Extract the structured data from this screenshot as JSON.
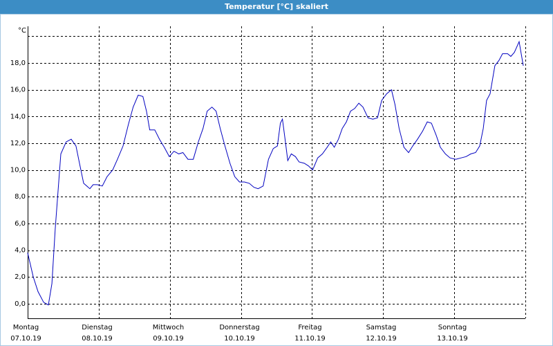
{
  "chart_data": {
    "type": "line",
    "title": "Temperatur [°C] skaliert",
    "unit_label": "°C",
    "xlim": [
      0,
      168
    ],
    "xticks": [
      0,
      24,
      48,
      72,
      96,
      120,
      144
    ],
    "xtick_days": [
      "Montag",
      "Dienstag",
      "Mittwoch",
      "Donnerstag",
      "Freitag",
      "Samstag",
      "Sonntag"
    ],
    "xtick_dates": [
      "07.10.19",
      "08.10.19",
      "09.10.19",
      "10.10.19",
      "11.10.19",
      "12.10.19",
      "13.10.19"
    ],
    "ylim": [
      -1.1,
      20.75
    ],
    "yticks": [
      {
        "value": 0,
        "label": "0,0"
      },
      {
        "value": 2,
        "label": "2,0"
      },
      {
        "value": 4,
        "label": "4,0"
      },
      {
        "value": 6,
        "label": "6,0"
      },
      {
        "value": 8,
        "label": "8,0"
      },
      {
        "value": 10,
        "label": "10,0"
      },
      {
        "value": 12,
        "label": "12,0"
      },
      {
        "value": 14,
        "label": "14,0"
      },
      {
        "value": 16,
        "label": "16,0"
      },
      {
        "value": 18,
        "label": "18,0"
      }
    ],
    "ygrid": [
      0,
      2,
      4,
      6,
      8,
      10,
      12,
      14,
      16,
      18,
      20
    ],
    "grid": true,
    "series": [
      {
        "color": "#0000c0",
        "x": [
          0,
          1.9,
          3.5,
          5.4,
          7.0,
          8.2,
          9.3,
          11.2,
          13.0,
          14.7,
          16.3,
          17.5,
          18.9,
          21.0,
          22.1,
          23.5,
          25.2,
          26.8,
          28.7,
          30.3,
          32.2,
          34.0,
          35.6,
          37.3,
          38.9,
          40.1,
          41.2,
          42.9,
          44.5,
          46.1,
          47.8,
          49.4,
          51.0,
          52.4,
          54.1,
          55.9,
          57.6,
          59.2,
          60.6,
          62.2,
          63.6,
          65.0,
          66.6,
          68.3,
          69.9,
          71.5,
          73.2,
          74.8,
          76.4,
          77.8,
          79.5,
          81.3,
          82.9,
          84.3,
          85.3,
          86.0,
          86.9,
          87.8,
          89.0,
          90.4,
          91.6,
          93.4,
          94.8,
          96.2,
          97.9,
          99.5,
          101.1,
          102.3,
          103.5,
          104.9,
          106.2,
          107.6,
          109.0,
          110.4,
          111.8,
          113.2,
          114.9,
          116.5,
          118.1,
          119.5,
          121.2,
          122.8,
          124.0,
          125.4,
          127.0,
          128.6,
          130.0,
          131.6,
          133.3,
          134.9,
          136.3,
          137.9,
          139.3,
          141.0,
          142.6,
          144.5,
          146.3,
          148.0,
          149.6,
          151.2,
          152.6,
          153.8,
          154.9,
          156.1,
          157.7,
          159.1,
          160.3,
          162.0,
          163.1,
          164.3,
          165.9,
          167.3
        ],
        "values": [
          3.8,
          2.0,
          0.9,
          0.1,
          -0.1,
          1.5,
          5.6,
          11.2,
          12.1,
          12.3,
          11.8,
          10.5,
          9.0,
          8.6,
          8.9,
          8.9,
          8.8,
          9.5,
          10.0,
          10.8,
          11.8,
          13.4,
          14.7,
          15.6,
          15.5,
          14.4,
          13.0,
          13.0,
          12.3,
          11.7,
          11.0,
          11.4,
          11.2,
          11.3,
          10.8,
          10.8,
          12.1,
          13.1,
          14.4,
          14.7,
          14.4,
          13.1,
          11.8,
          10.5,
          9.5,
          9.1,
          9.1,
          9.0,
          8.7,
          8.6,
          8.8,
          10.8,
          11.6,
          11.8,
          13.5,
          13.8,
          12.3,
          10.7,
          11.2,
          11.0,
          10.6,
          10.5,
          10.3,
          10.0,
          10.9,
          11.2,
          11.7,
          12.1,
          11.7,
          12.3,
          13.1,
          13.6,
          14.4,
          14.6,
          15.0,
          14.7,
          13.9,
          13.8,
          13.9,
          15.2,
          15.7,
          16.0,
          14.9,
          13.1,
          11.7,
          11.3,
          11.8,
          12.3,
          12.9,
          13.6,
          13.5,
          12.6,
          11.7,
          11.2,
          10.9,
          10.8,
          10.9,
          11.0,
          11.2,
          11.3,
          11.8,
          13.1,
          15.2,
          15.7,
          17.8,
          18.2,
          18.7,
          18.7,
          18.5,
          18.8,
          19.6,
          17.8
        ]
      }
    ]
  }
}
